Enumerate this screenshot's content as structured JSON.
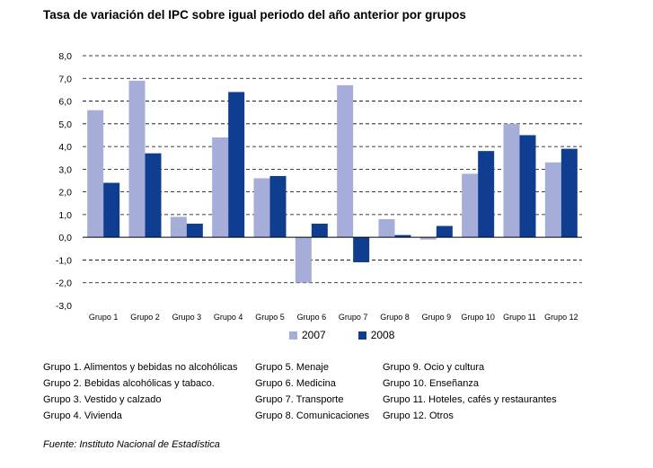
{
  "title": "Tasa de variación del IPC sobre igual periodo del año anterior por grupos",
  "source": "Fuente: Instituto Nacional de Estadística",
  "colors": {
    "2007": "#a5add8",
    "2008": "#0f3d8f"
  },
  "group_labels": [
    [
      "Grupo 1. Alimentos y bebidas no alcohólicas",
      "Grupo 2. Bebidas alcohólicas y  tabaco.",
      "Grupo 3. Vestido y calzado",
      "Grupo 4. Vivienda"
    ],
    [
      "Grupo 5. Menaje",
      "Grupo 6. Medicina",
      "Grupo 7. Transporte",
      "Grupo 8. Comunicaciones"
    ],
    [
      "Grupo 9. Ocio y cultura",
      "Grupo 10. Enseñanza",
      "Grupo 11. Hoteles, cafés y restaurantes",
      "Grupo 12. Otros"
    ]
  ],
  "chart_data": {
    "type": "bar",
    "categories": [
      "Grupo 1",
      "Grupo 2",
      "Grupo 3",
      "Grupo 4",
      "Grupo 5",
      "Grupo 6",
      "Grupo 7",
      "Grupo 8",
      "Grupo 9",
      "Grupo 10",
      "Grupo 11",
      "Grupo 12"
    ],
    "series": [
      {
        "name": "2007",
        "values": [
          5.6,
          6.9,
          0.9,
          4.4,
          2.6,
          -2.0,
          6.7,
          0.8,
          -0.1,
          2.8,
          5.0,
          3.3
        ]
      },
      {
        "name": "2008",
        "values": [
          2.4,
          3.7,
          0.6,
          6.4,
          2.7,
          0.6,
          -1.1,
          0.1,
          0.5,
          3.8,
          4.5,
          3.9
        ]
      }
    ],
    "yticks": [
      "8,0",
      "7,0",
      "6,0",
      "5,0",
      "4,0",
      "3,0",
      "2,0",
      "1,0",
      "0,0",
      "-1,0",
      "-2,0",
      "-3,0"
    ],
    "ylim": [
      -3,
      8
    ],
    "grid": true,
    "legend": "bottom"
  }
}
